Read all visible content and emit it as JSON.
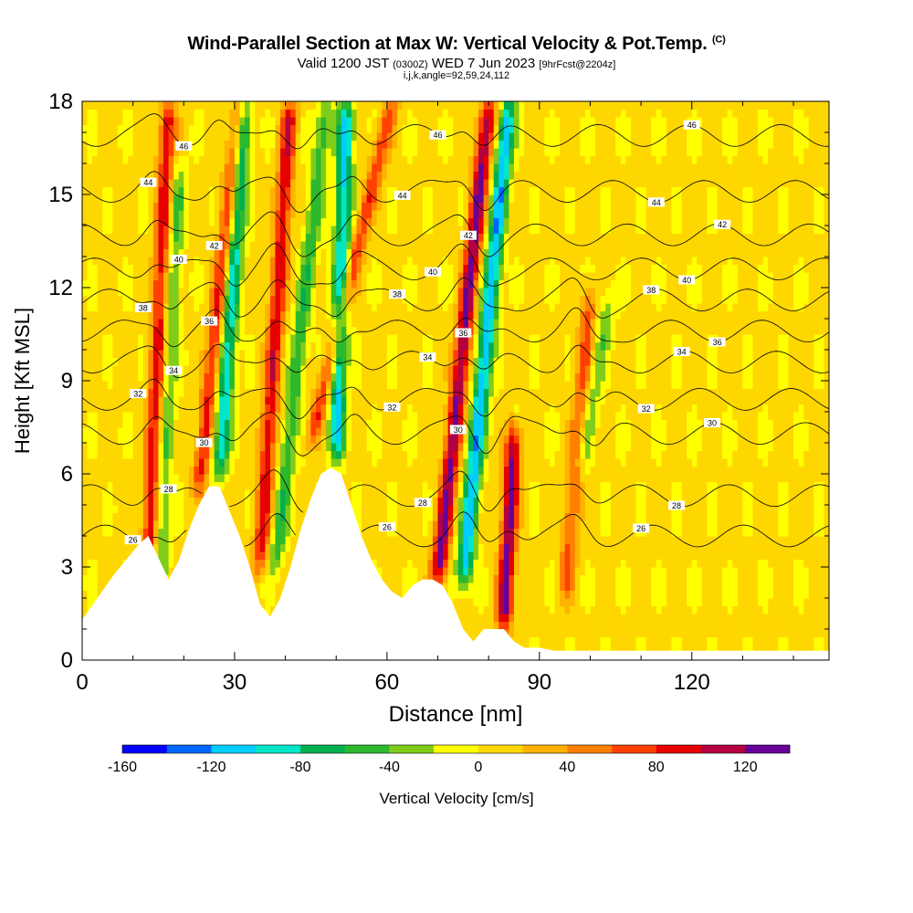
{
  "header": {
    "title_main": "Wind-Parallel Section at Max W: Vertical Velocity & Pot.Temp.",
    "title_unit": "(C)",
    "sub_valid": "Valid 1200 JST",
    "sub_utc": "(0300Z)",
    "sub_date": "WED 7 Jun 2023",
    "sub_fcst": "[9hrFcst@2204z]",
    "params": "i,j,k,angle=92,59,24,112"
  },
  "chart_data": {
    "type": "heatmap",
    "xlabel": "Distance [nm]",
    "ylabel": "Height [Kft MSL]",
    "xlim": [
      0,
      147
    ],
    "ylim": [
      0,
      18
    ],
    "x_ticks": [
      0,
      30,
      60,
      90,
      120
    ],
    "y_ticks": [
      0,
      3,
      6,
      9,
      12,
      15,
      18
    ],
    "colorbar": {
      "label": "Vertical Velocity [cm/s]",
      "range": [
        -160,
        140
      ],
      "step": 20,
      "tick_labels": [
        -160,
        -120,
        -80,
        -40,
        0,
        40,
        80,
        120
      ],
      "colors": [
        "#0000ff",
        "#0066ff",
        "#00ccff",
        "#00e6c8",
        "#00b050",
        "#2eb82e",
        "#80cc1a",
        "#ffff00",
        "#ffd700",
        "#ffb300",
        "#ff8000",
        "#ff4000",
        "#e60000",
        "#b30040",
        "#660099"
      ]
    },
    "background_w": 5,
    "updraft_bands": [
      {
        "x_bottom": 13,
        "x_top": 17,
        "y_from": 2.5,
        "y_to": 18,
        "w": 90
      },
      {
        "x_bottom": 23,
        "x_top": 31,
        "y_from": 5.5,
        "y_to": 18,
        "w": 80
      },
      {
        "x_bottom": 35,
        "x_top": 41,
        "y_from": 3.0,
        "y_to": 18,
        "w": 90
      },
      {
        "x_bottom": 45,
        "x_top": 61,
        "y_from": 7.0,
        "y_to": 18,
        "w": 70
      },
      {
        "x_bottom": 70,
        "x_top": 80,
        "y_from": 2.5,
        "y_to": 18,
        "w": 120
      },
      {
        "x_bottom": 83,
        "x_top": 85,
        "y_from": 1.0,
        "y_to": 7.5,
        "w": 120
      },
      {
        "x_bottom": 95,
        "x_top": 100,
        "y_from": 2.0,
        "y_to": 12,
        "w": 60
      }
    ],
    "downdraft_bands": [
      {
        "x_bottom": 15,
        "x_top": 19,
        "y_from": 2.5,
        "y_to": 16,
        "w": -50
      },
      {
        "x_bottom": 27,
        "x_top": 32,
        "y_from": 6.0,
        "y_to": 18,
        "w": -100
      },
      {
        "x_bottom": 38,
        "x_top": 48,
        "y_from": 3.0,
        "y_to": 18,
        "w": -60
      },
      {
        "x_bottom": 50,
        "x_top": 52,
        "y_from": 6.5,
        "y_to": 18,
        "w": -110
      },
      {
        "x_bottom": 75,
        "x_top": 84,
        "y_from": 2.5,
        "y_to": 18,
        "w": -120
      },
      {
        "x_bottom": 98,
        "x_top": 104,
        "y_from": 6.0,
        "y_to": 12,
        "w": -40
      }
    ],
    "terrain_height": [
      [
        0,
        1.3
      ],
      [
        3,
        2.0
      ],
      [
        6,
        2.7
      ],
      [
        9,
        3.3
      ],
      [
        11,
        3.7
      ],
      [
        13,
        4.0
      ],
      [
        15,
        3.3
      ],
      [
        17,
        2.6
      ],
      [
        19,
        3.2
      ],
      [
        21,
        4.2
      ],
      [
        23,
        5.0
      ],
      [
        25,
        5.6
      ],
      [
        27,
        5.6
      ],
      [
        29,
        4.8
      ],
      [
        31,
        4.0
      ],
      [
        33,
        3.0
      ],
      [
        35,
        1.8
      ],
      [
        37,
        1.4
      ],
      [
        39,
        2.0
      ],
      [
        41,
        3.0
      ],
      [
        43,
        4.2
      ],
      [
        45,
        5.2
      ],
      [
        47,
        6.0
      ],
      [
        49,
        6.2
      ],
      [
        51,
        6.0
      ],
      [
        53,
        5.0
      ],
      [
        55,
        4.0
      ],
      [
        57,
        3.2
      ],
      [
        59,
        2.6
      ],
      [
        61,
        2.2
      ],
      [
        63,
        2.0
      ],
      [
        65,
        2.4
      ],
      [
        67,
        2.6
      ],
      [
        69,
        2.6
      ],
      [
        71,
        2.4
      ],
      [
        73,
        1.8
      ],
      [
        75,
        1.0
      ],
      [
        77,
        0.6
      ],
      [
        79,
        1.0
      ],
      [
        81,
        1.0
      ],
      [
        83,
        1.0
      ],
      [
        85,
        0.6
      ],
      [
        87,
        0.4
      ],
      [
        90,
        0.4
      ],
      [
        93,
        0.3
      ],
      [
        97,
        0.3
      ],
      [
        100,
        0.3
      ],
      [
        147,
        0.3
      ]
    ],
    "theta_contour_labels": [
      "44",
      "42",
      "36",
      "32",
      "30",
      "28",
      "38",
      "34",
      "40",
      "46",
      "26"
    ],
    "theta_contours": [
      {
        "base": 4.0,
        "label": "26"
      },
      {
        "base": 5.3,
        "label": "28"
      },
      {
        "base": 7.3,
        "label": "30"
      },
      {
        "base": 8.4,
        "label": "32"
      },
      {
        "base": 9.6,
        "label": "34"
      },
      {
        "base": 10.6,
        "label": "36"
      },
      {
        "base": 11.6,
        "label": "38"
      },
      {
        "base": 12.6,
        "label": "40"
      },
      {
        "base": 13.7,
        "label": "42"
      },
      {
        "base": 15.1,
        "label": "44"
      },
      {
        "base": 16.9,
        "label": "46"
      }
    ]
  }
}
